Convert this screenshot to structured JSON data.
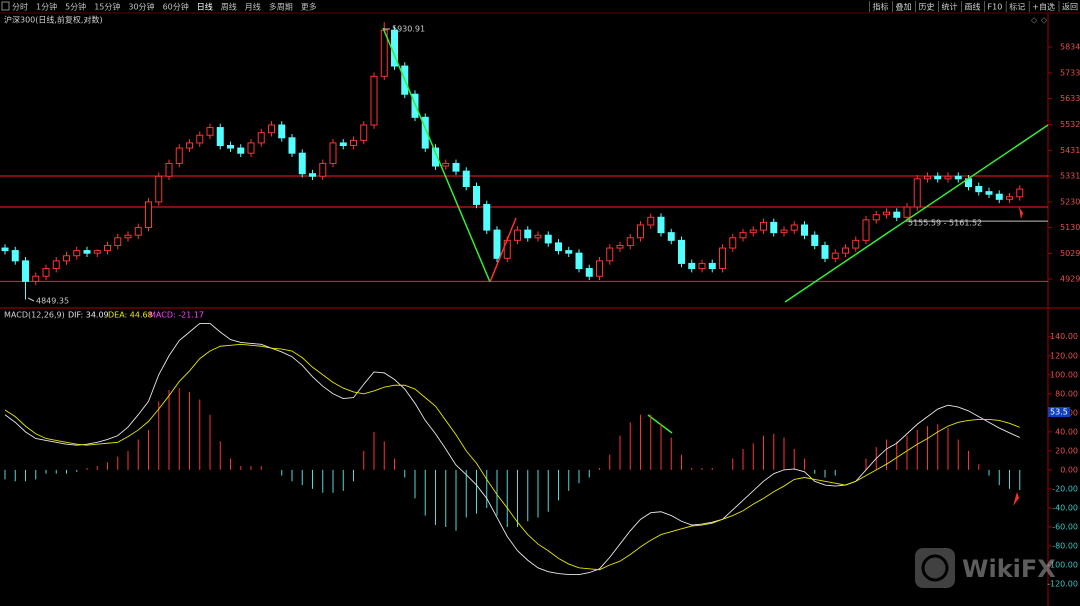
{
  "toolbar_left": [
    "分时",
    "1分钟",
    "5分钟",
    "15分钟",
    "30分钟",
    "60分钟",
    "日线",
    "周线",
    "月线",
    "多周期",
    "更多"
  ],
  "toolbar_right": [
    "指标",
    "叠加",
    "历史",
    "统计",
    "画线",
    "F10",
    "标记",
    "+自选",
    "返回"
  ],
  "watermark": "WikiFX",
  "chart_data": [
    {
      "type": "candlestick",
      "title": "沪深300(日线,前复权,对数)",
      "up_color": "#ff3232",
      "down_color": "#54ffff",
      "ylim": [
        4820,
        5963
      ],
      "yticks": [
        5834,
        5733,
        5633,
        5532,
        5431,
        5331,
        5230,
        5130,
        5029,
        4929
      ],
      "annotations": [
        "5930.91",
        "4849.35",
        "5155.59 - 5161.52"
      ],
      "reference_lines": [
        {
          "value": 5331,
          "color": "#ff2020"
        },
        {
          "value": 5210,
          "color": "#ff2020"
        },
        {
          "value": 4920,
          "color": "#ff2020"
        },
        {
          "value": 5155,
          "color": "#c0c0c0"
        }
      ],
      "open": [
        5050,
        5040,
        5000,
        4920,
        4940,
        4970,
        5000,
        5020,
        5040,
        5030,
        5040,
        5060,
        5090,
        5100,
        5130,
        5230,
        5330,
        5380,
        5440,
        5460,
        5490,
        5520,
        5450,
        5440,
        5420,
        5460,
        5500,
        5530,
        5480,
        5420,
        5340,
        5330,
        5380,
        5460,
        5450,
        5470,
        5530,
        5720,
        5900,
        5760,
        5650,
        5560,
        5440,
        5370,
        5380,
        5350,
        5290,
        5220,
        5120,
        5010,
        5080,
        5120,
        5090,
        5100,
        5070,
        5040,
        5030,
        4970,
        4940,
        5000,
        5050,
        5060,
        5090,
        5140,
        5170,
        5110,
        5080,
        4990,
        4970,
        4990,
        4970,
        5050,
        5090,
        5110,
        5120,
        5150,
        5110,
        5120,
        5140,
        5100,
        5060,
        5010,
        5030,
        5050,
        5080,
        5160,
        5180,
        5190,
        5170,
        5210,
        5320,
        5330,
        5320,
        5330,
        5320,
        5290,
        5270,
        5260,
        5240,
        5250
      ],
      "high": [
        5065,
        5055,
        5015,
        4955,
        4985,
        5015,
        5035,
        5055,
        5055,
        5045,
        5075,
        5105,
        5115,
        5145,
        5245,
        5345,
        5395,
        5455,
        5475,
        5505,
        5535,
        5535,
        5465,
        5455,
        5475,
        5515,
        5545,
        5545,
        5495,
        5435,
        5355,
        5395,
        5475,
        5475,
        5485,
        5545,
        5735,
        5930.91,
        5915,
        5775,
        5665,
        5575,
        5455,
        5395,
        5395,
        5365,
        5305,
        5235,
        5135,
        5095,
        5135,
        5135,
        5115,
        5115,
        5085,
        5055,
        5045,
        4985,
        5015,
        5065,
        5075,
        5105,
        5155,
        5185,
        5185,
        5125,
        5095,
        5005,
        5005,
        5005,
        5065,
        5105,
        5125,
        5135,
        5165,
        5165,
        5135,
        5155,
        5155,
        5115,
        5075,
        5045,
        5065,
        5095,
        5175,
        5195,
        5205,
        5205,
        5225,
        5335,
        5345,
        5345,
        5345,
        5345,
        5335,
        5305,
        5285,
        5275,
        5265,
        5295
      ],
      "low": [
        5025,
        4985,
        4849.35,
        4905,
        4925,
        4955,
        4985,
        5005,
        5015,
        5015,
        5025,
        5045,
        5075,
        5085,
        5115,
        5215,
        5315,
        5365,
        5425,
        5445,
        5475,
        5435,
        5425,
        5405,
        5405,
        5445,
        5485,
        5465,
        5405,
        5325,
        5315,
        5315,
        5365,
        5435,
        5435,
        5455,
        5515,
        5705,
        5745,
        5635,
        5545,
        5425,
        5355,
        5355,
        5335,
        5275,
        5205,
        5105,
        4995,
        4995,
        5065,
        5075,
        5075,
        5055,
        5025,
        5015,
        4955,
        4925,
        4925,
        4985,
        5035,
        5045,
        5075,
        5125,
        5095,
        5065,
        4975,
        4955,
        4955,
        4955,
        4955,
        5035,
        5075,
        5095,
        5105,
        5095,
        5095,
        5105,
        5085,
        5045,
        4995,
        4995,
        5015,
        5035,
        5065,
        5145,
        5165,
        5155,
        5155,
        5195,
        5305,
        5305,
        5305,
        5305,
        5275,
        5255,
        5245,
        5225,
        5225,
        5235
      ],
      "close": [
        5040,
        5000,
        4920,
        4940,
        4970,
        5000,
        5020,
        5040,
        5030,
        5040,
        5060,
        5090,
        5100,
        5130,
        5230,
        5330,
        5380,
        5440,
        5460,
        5490,
        5520,
        5450,
        5440,
        5420,
        5460,
        5500,
        5530,
        5480,
        5420,
        5340,
        5330,
        5380,
        5460,
        5450,
        5470,
        5530,
        5720,
        5900,
        5760,
        5650,
        5560,
        5440,
        5370,
        5380,
        5350,
        5290,
        5220,
        5120,
        5010,
        5080,
        5120,
        5090,
        5100,
        5070,
        5040,
        5030,
        4970,
        4940,
        5000,
        5050,
        5060,
        5090,
        5140,
        5170,
        5110,
        5080,
        4990,
        4970,
        4990,
        4970,
        5050,
        5090,
        5110,
        5120,
        5150,
        5110,
        5120,
        5140,
        5100,
        5060,
        5010,
        5030,
        5050,
        5080,
        5160,
        5180,
        5190,
        5170,
        5210,
        5320,
        5330,
        5320,
        5330,
        5320,
        5290,
        5270,
        5260,
        5240,
        5250,
        5280
      ]
    },
    {
      "type": "macd",
      "title": "MACD(12,26,9)",
      "marker_label": "53.5",
      "up_color": "#ff3232",
      "down_color": "#54d8d8",
      "ylim": [
        -141,
        166
      ],
      "yticks": [
        {
          "value": 140,
          "label": "140.00"
        },
        {
          "value": 120,
          "label": "120.00"
        },
        {
          "value": 100,
          "label": "100.00"
        },
        {
          "value": 80,
          "label": "80.00"
        },
        {
          "value": 60,
          "label": "60.00"
        },
        {
          "value": 40,
          "label": "40.00"
        },
        {
          "value": 20,
          "label": "20.00"
        },
        {
          "value": 0,
          "label": "0.00"
        },
        {
          "value": -20,
          "label": "-20.00"
        },
        {
          "value": -40,
          "label": "-40.00"
        },
        {
          "value": -60,
          "label": "-60.00"
        },
        {
          "value": -80,
          "label": "-80.00"
        },
        {
          "value": -100,
          "label": "-100.00"
        },
        {
          "value": -120,
          "label": "-120.00"
        }
      ],
      "series": [
        {
          "name": "DIF: 34.09",
          "color": "#e8e8e8",
          "values": [
            58,
            50,
            40,
            33,
            31,
            29,
            27,
            26,
            27,
            29,
            32,
            36,
            45,
            58,
            72,
            100,
            120,
            136,
            145,
            154,
            154,
            145,
            137,
            134,
            133,
            132,
            128,
            124,
            119,
            110,
            98,
            88,
            80,
            75,
            76,
            90,
            103,
            102,
            95,
            85,
            70,
            52,
            38,
            22,
            5,
            -5,
            -16,
            -30,
            -50,
            -70,
            -85,
            -95,
            -103,
            -107,
            -109,
            -110,
            -110,
            -108,
            -104,
            -92,
            -78,
            -64,
            -52,
            -45,
            -44,
            -48,
            -54,
            -58,
            -57,
            -55,
            -52,
            -42,
            -32,
            -22,
            -12,
            -4,
            0,
            1,
            -2,
            -12,
            -16,
            -17,
            -16,
            -12,
            0,
            12,
            22,
            28,
            38,
            48,
            56,
            64,
            68,
            66,
            62,
            56,
            50,
            44,
            39,
            34.09
          ]
        },
        {
          "name": "DEA: 44.68",
          "color": "#e6e600",
          "values": [
            63,
            56,
            46,
            38,
            33,
            31,
            29,
            27,
            26,
            27,
            28,
            29,
            35,
            42,
            51,
            64,
            78,
            93,
            104,
            117,
            125,
            130,
            131,
            132,
            131,
            130,
            128,
            127,
            125,
            118,
            108,
            100,
            92,
            86,
            82,
            80,
            83,
            87,
            89,
            89,
            85,
            76,
            67,
            52,
            37,
            20,
            7,
            -10,
            -26,
            -40,
            -55,
            -68,
            -78,
            -85,
            -93,
            -99,
            -103,
            -104,
            -105,
            -100,
            -96,
            -89,
            -81,
            -74,
            -68,
            -65,
            -62,
            -59,
            -58,
            -56,
            -52,
            -48,
            -43,
            -36,
            -30,
            -23,
            -17,
            -10,
            -8,
            -10,
            -12,
            -14,
            -16,
            -12,
            -6,
            0,
            6,
            13,
            20,
            27,
            33,
            40,
            46,
            50,
            52,
            53,
            53,
            52,
            49,
            44.68
          ]
        },
        {
          "name": "MACD: -21.17",
          "color": "#ff40ff",
          "values": [
            -10,
            -12,
            -12,
            -10,
            -4,
            -4,
            -4,
            -2,
            2,
            4,
            8,
            14,
            20,
            32,
            42,
            72,
            84,
            86,
            82,
            74,
            58,
            30,
            12,
            4,
            4,
            4,
            0,
            -6,
            -12,
            -16,
            -20,
            -24,
            -24,
            -22,
            -12,
            20,
            40,
            30,
            12,
            -8,
            -30,
            -48,
            -58,
            -60,
            -64,
            -50,
            -46,
            -40,
            -48,
            -60,
            -60,
            -54,
            -50,
            -44,
            -32,
            -22,
            -14,
            -8,
            2,
            16,
            36,
            50,
            58,
            58,
            48,
            34,
            16,
            2,
            2,
            2,
            0,
            12,
            22,
            28,
            36,
            38,
            34,
            22,
            12,
            -4,
            -8,
            -6,
            0,
            0,
            12,
            24,
            32,
            30,
            36,
            42,
            46,
            48,
            44,
            32,
            20,
            6,
            -6,
            -16,
            -20,
            -21.17
          ]
        }
      ]
    }
  ]
}
